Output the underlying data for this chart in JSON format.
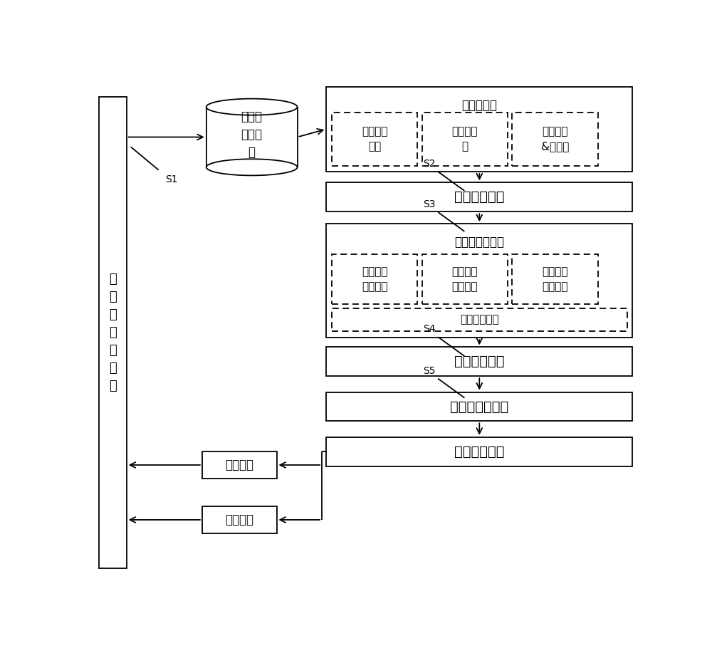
{
  "bg_color": "#ffffff",
  "left_label": "热\n风\n炉\n烧\n炉\n过\n程",
  "cylinder_label": "烧炉操\n作样本\n集",
  "data_preprocess_label": "数据预处理",
  "sub_boxes_top": [
    "异常数据\n处理",
    "缺失值填\n补",
    "噪声滤波\n&归一化"
  ],
  "box2_label": "优良烧炉炉次",
  "mode_box_label": "模式分类与评价",
  "mode_sub_boxes": [
    "分段聚合\n特征表示",
    "动态时间\n规整距离",
    "密度峰値\n快速聚类"
  ],
  "comprehensive_label": "综合评价指标",
  "box4_label": "模式匹配空间",
  "box5_label": "分时段多级匹配",
  "box6_label": "最优操作模式",
  "valve1_label": "煌气阀门",
  "valve2_label": "空气阀门",
  "lw": 1.3,
  "font_size_large": 14,
  "font_size_medium": 12,
  "font_size_small": 11,
  "font_size_label": 10
}
